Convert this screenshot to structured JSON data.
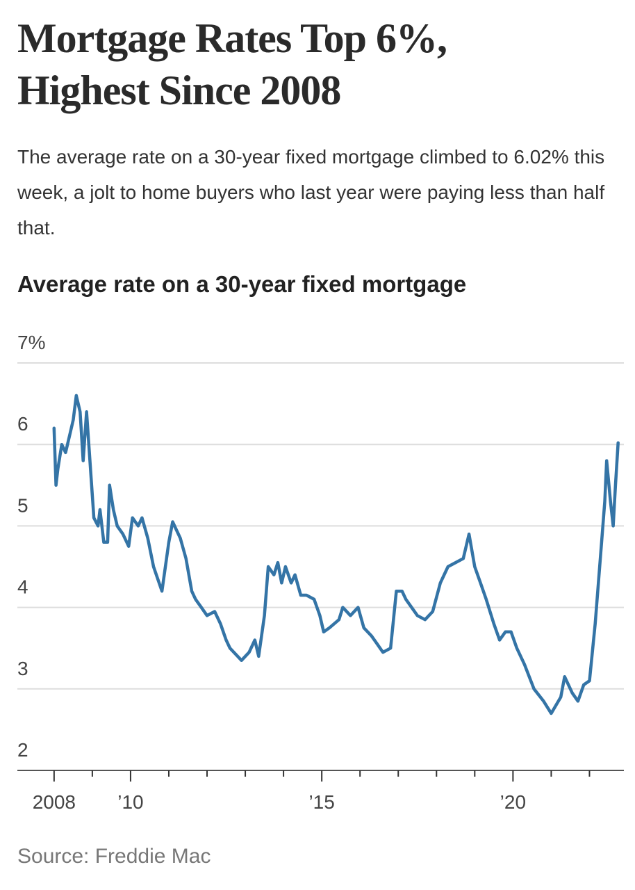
{
  "chart_data": {
    "type": "line",
    "title": "Mortgage Rates Top 6%, Highest Since 2008",
    "subtitle": "The average rate on a 30-year fixed mortgage climbed to 6.02% this week, a jolt to home buyers who last year were paying less than half that.",
    "chart_title": "Average rate on a 30-year fixed mortgage",
    "source": "Source: Freddie Mac",
    "color": "#3474a6",
    "grid": true,
    "xlim": [
      2007.04,
      2022.9
    ],
    "ylim": [
      2,
      7
    ],
    "yticks": [
      2,
      3,
      4,
      5,
      6,
      {
        "value": 7,
        "label": "7%"
      }
    ],
    "xticks": [
      {
        "value": 2008,
        "label": "2008"
      },
      {
        "value": 2010,
        "label": "’10"
      },
      {
        "value": 2015,
        "label": "’15"
      },
      {
        "value": 2020,
        "label": "’20"
      }
    ],
    "xminorticks": [
      2009,
      2011,
      2012,
      2013,
      2014,
      2016,
      2017,
      2018,
      2019,
      2021,
      2022
    ],
    "x": [
      2008.0,
      2008.05,
      2008.1,
      2008.2,
      2008.3,
      2008.4,
      2008.5,
      2008.58,
      2008.68,
      2008.76,
      2008.85,
      2009.04,
      2009.15,
      2009.2,
      2009.3,
      2009.4,
      2009.45,
      2009.55,
      2009.65,
      2009.8,
      2009.95,
      2010.05,
      2010.2,
      2010.3,
      2010.45,
      2010.6,
      2010.82,
      2011.0,
      2011.1,
      2011.3,
      2011.45,
      2011.6,
      2011.7,
      2011.85,
      2012.0,
      2012.2,
      2012.35,
      2012.5,
      2012.6,
      2012.8,
      2012.9,
      2013.1,
      2013.25,
      2013.35,
      2013.5,
      2013.6,
      2013.75,
      2013.85,
      2013.95,
      2014.05,
      2014.2,
      2014.3,
      2014.45,
      2014.6,
      2014.8,
      2014.95,
      2015.05,
      2015.2,
      2015.45,
      2015.55,
      2015.75,
      2015.95,
      2016.1,
      2016.3,
      2016.45,
      2016.6,
      2016.8,
      2016.95,
      2017.1,
      2017.2,
      2017.5,
      2017.7,
      2017.9,
      2018.1,
      2018.3,
      2018.5,
      2018.7,
      2018.85,
      2019.0,
      2019.15,
      2019.3,
      2019.5,
      2019.65,
      2019.8,
      2019.95,
      2020.1,
      2020.3,
      2020.55,
      2020.8,
      2021.0,
      2021.25,
      2021.35,
      2021.55,
      2021.7,
      2021.85,
      2022.0,
      2022.15,
      2022.3,
      2022.4,
      2022.45,
      2022.55,
      2022.62,
      2022.68,
      2022.75
    ],
    "values": [
      6.2,
      5.5,
      5.7,
      6.0,
      5.9,
      6.1,
      6.3,
      6.6,
      6.4,
      5.8,
      6.4,
      5.1,
      5.0,
      5.2,
      4.8,
      4.8,
      5.5,
      5.2,
      5.0,
      4.9,
      4.75,
      5.1,
      5.0,
      5.1,
      4.85,
      4.5,
      4.2,
      4.8,
      5.05,
      4.85,
      4.6,
      4.2,
      4.1,
      4.0,
      3.9,
      3.95,
      3.8,
      3.6,
      3.5,
      3.4,
      3.35,
      3.45,
      3.6,
      3.4,
      3.9,
      4.5,
      4.4,
      4.55,
      4.3,
      4.5,
      4.3,
      4.4,
      4.15,
      4.15,
      4.1,
      3.9,
      3.7,
      3.75,
      3.85,
      4.0,
      3.9,
      4.0,
      3.75,
      3.65,
      3.55,
      3.45,
      3.5,
      4.2,
      4.2,
      4.1,
      3.9,
      3.85,
      3.95,
      4.3,
      4.5,
      4.55,
      4.6,
      4.9,
      4.5,
      4.3,
      4.1,
      3.8,
      3.6,
      3.7,
      3.7,
      3.5,
      3.3,
      3.0,
      2.85,
      2.7,
      2.9,
      3.15,
      2.95,
      2.85,
      3.05,
      3.1,
      3.8,
      4.7,
      5.3,
      5.8,
      5.3,
      5.0,
      5.5,
      6.02
    ]
  }
}
